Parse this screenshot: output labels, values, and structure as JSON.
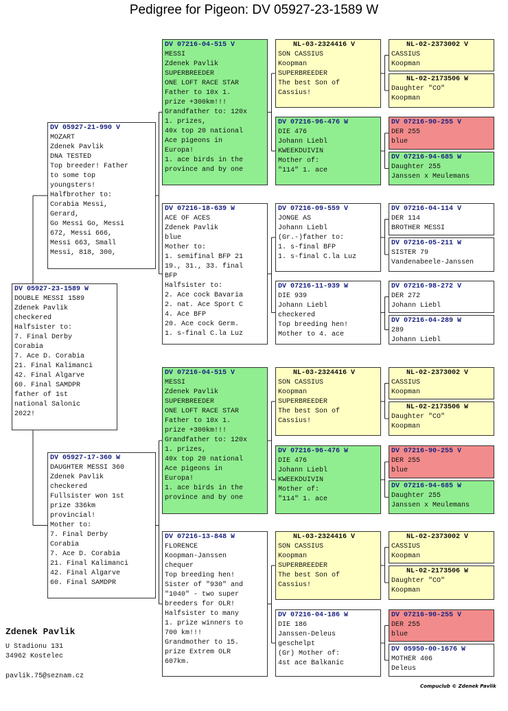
{
  "title": "Pedigree for Pigeon: DV  05927-23-1589 W",
  "boxes": [
    {
      "ring": "DV  05927-23-1589 W",
      "lines": [
        "DOUBLE MESSI 1589",
        "Zdenek Pavlik",
        "checkered",
        "Halfsister to:",
        "7. Final Derby",
        "Corabia",
        "7. Ace D. Corabia",
        "21. Final Kalimanci",
        "42. Final Algarve",
        "60. Final SAMDPR",
        "father of 1st",
        "national Salonic",
        "2022!"
      ]
    },
    {
      "ring": "DV  05927-21-990 V",
      "lines": [
        "MOZART",
        "Zdenek Pavlik",
        "DNA TESTED",
        "Top breeder! Father",
        "to some top",
        "youngsters!",
        "Halfbrother to:",
        "Corabia Messi,",
        "Gerard,",
        "Go Messi Go, Messi",
        "672, Messi 666,",
        "Messi 663, Small",
        "Messi, 818, 300,"
      ]
    },
    {
      "ring": "DV  05927-17-360 W",
      "lines": [
        "DAUGHTER MESSI 360",
        "Zdenek Pavlik",
        "checkered",
        "Fullsister won 1st",
        "prize 336km",
        "provincial!",
        "Mother to:",
        "7. Final Derby",
        "Corabia",
        "7. Ace D. Corabia",
        "21. Final Kalimanci",
        "42. Final Algarve",
        "60. Final SAMDPR"
      ]
    },
    {
      "ring": "DV  07216-04-515 V",
      "lines": [
        "MESSI",
        "Zdenek Pavlik",
        "SUPERBREEDER",
        "ONE LOFT RACE STAR",
        "Father to 10x 1.",
        "prize +300km!!!",
        "Grandfather to: 120x",
        "1. prizes,",
        "40x top 20 national",
        "Ace pigeons in",
        "Europa!",
        "1. ace birds in the",
        "province and by one"
      ]
    },
    {
      "ring": "DV  07216-18-639 W",
      "lines": [
        "ACE OF ACES",
        "Zdenek Pavlik",
        "blue",
        "Mother to:",
        "1. semifinal BFP 21",
        "19., 31., 33. final",
        "BFP",
        "Halfsister to:",
        "2. Ace cock Bavaria",
        "2. nat. Ace Sport C",
        "4. Ace BFP",
        "20. Ace cock Germ.",
        "1. s-final C.la Luz"
      ]
    },
    {
      "ring": "DV  07216-04-515 V",
      "lines": [
        "MESSI",
        "Zdenek Pavlik",
        "SUPERBREEDER",
        "ONE LOFT RACE STAR",
        "Father to 10x 1.",
        "prize +300km!!!",
        "Grandfather to: 120x",
        "1. prizes,",
        "40x top 20 national",
        "Ace pigeons in",
        "Europa!",
        "1. ace birds in the",
        "province and by one"
      ]
    },
    {
      "ring": "DV  07216-13-848 W",
      "lines": [
        "FLORENCE",
        "Koopman-Janssen",
        "chequer",
        "Top breeding hen!",
        "Sister of \"930\" and",
        "\"1040\" - two super",
        "breeders for OLR!",
        "Halfsister to many",
        "1. prize winners to",
        "700 km!!!",
        "Grandmother to 15.",
        "prize Extrem OLR",
        "607km."
      ]
    },
    {
      "ring": "NL-03-2324416 V",
      "lines": [
        "SON CASSIUS",
        "Koopman",
        "SUPERBREEDER",
        "The best Son of",
        "Cassius!"
      ]
    },
    {
      "ring": "DV  07216-96-476 W",
      "lines": [
        "DIE 476",
        "Johann Liebl",
        "KWEEKDUIVIN",
        "Mother of:",
        "\"114\" 1. ace"
      ]
    },
    {
      "ring": "DV  07216-09-559 V",
      "lines": [
        "JONGE AS",
        "Johann Liebl",
        "(Gr.-)father to:",
        "1. s-final BFP",
        "1. s-final C.la Luz"
      ]
    },
    {
      "ring": "DV  07216-11-939 W",
      "lines": [
        "DIE 939",
        "Johann Liebl",
        "checkered",
        "Top breeding hen!",
        "Mother to 4. ace"
      ]
    },
    {
      "ring": "NL-03-2324416 V",
      "lines": [
        "SON CASSIUS",
        "Koopman",
        "SUPERBREEDER",
        "The best Son of",
        "Cassius!"
      ]
    },
    {
      "ring": "DV  07216-96-476 W",
      "lines": [
        "DIE 476",
        "Johann Liebl",
        "KWEEKDUIVIN",
        "Mother of:",
        "\"114\" 1. ace"
      ]
    },
    {
      "ring": "NL-03-2324416 V",
      "lines": [
        "SON CASSIUS",
        "Koopman",
        "SUPERBREEDER",
        "The best Son of",
        "Cassius!"
      ]
    },
    {
      "ring": "DV  07216-04-186 W",
      "lines": [
        "DIE 186",
        "Janssen-Deleus",
        "geschelpt",
        "(Gr) Mother of:",
        "4st ace Balkanic"
      ]
    },
    {
      "ring": "NL-02-2373002 V",
      "lines": [
        "CASSIUS",
        "Koopman"
      ]
    },
    {
      "ring": "NL-02-2173506 W",
      "lines": [
        "Daughter \"CO\"",
        "Koopman"
      ]
    },
    {
      "ring": "DV  07216-90-255 V",
      "lines": [
        "DER 255",
        "blue"
      ]
    },
    {
      "ring": "DV  07216-94-685 W",
      "lines": [
        "Daughter 255",
        "Janssen x Meulemans"
      ]
    },
    {
      "ring": "DV  07216-04-114 V",
      "lines": [
        "DER 114",
        "BROTHER MESSI"
      ]
    },
    {
      "ring": "DV  07216-05-211 W",
      "lines": [
        "SISTER 79",
        "Vandenabeele-Janssen"
      ]
    },
    {
      "ring": "DV  07216-98-272 V",
      "lines": [
        "DER 272",
        "Johann Liebl"
      ]
    },
    {
      "ring": "DV  07216-04-289 W",
      "lines": [
        "289",
        "Johann Liebl"
      ]
    },
    {
      "ring": "NL-02-2373002 V",
      "lines": [
        "CASSIUS",
        "Koopman"
      ]
    },
    {
      "ring": "NL-02-2173506 W",
      "lines": [
        "Daughter \"CO\"",
        "Koopman"
      ]
    },
    {
      "ring": "DV  07216-90-255 V",
      "lines": [
        "DER 255",
        "blue"
      ]
    },
    {
      "ring": "DV  07216-94-685 W",
      "lines": [
        "Daughter 255",
        "Janssen x Meulemans"
      ]
    },
    {
      "ring": "NL-02-2373002 V",
      "lines": [
        "CASSIUS",
        "Koopman"
      ]
    },
    {
      "ring": "NL-02-2173506 W",
      "lines": [
        "Daughter \"CO\"",
        "Koopman"
      ]
    },
    {
      "ring": "DV  07216-90-255 V",
      "lines": [
        "DER 255",
        "blue"
      ]
    },
    {
      "ring": "DV  05950-00-1676 W",
      "lines": [
        "MOTHER 406",
        "Deleus"
      ]
    }
  ],
  "owner": {
    "name": "Zdenek Pavlik",
    "address": [
      "U Stadionu 131",
      "34962  Kostelec"
    ],
    "email": "pavlik.75@seznam.cz"
  },
  "footer": "Compuclub © Zdenek Pavlik"
}
